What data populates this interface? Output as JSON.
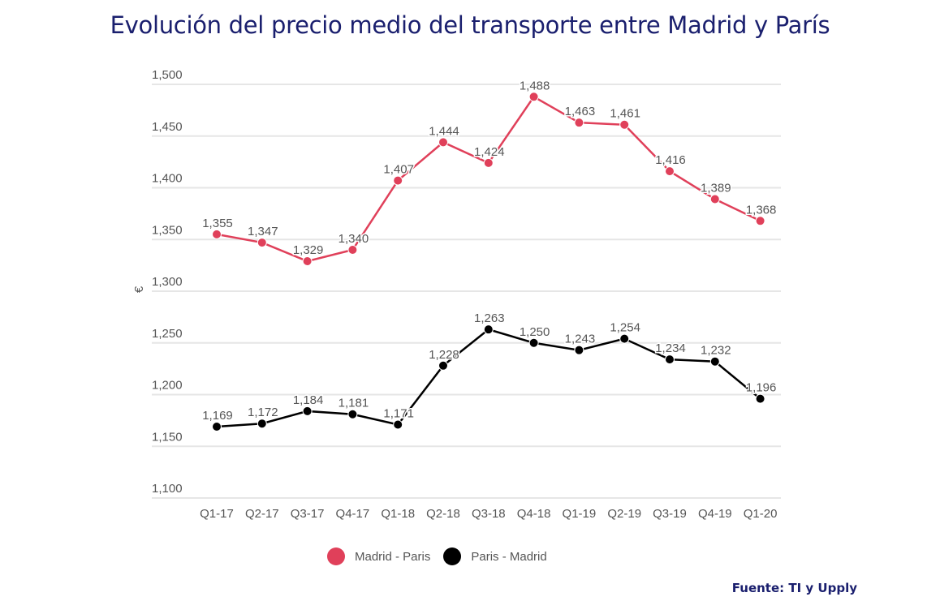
{
  "title": "Evolución del precio medio del transporte entre Madrid y París",
  "source": "Fuente: TI y Upply",
  "chart_data": {
    "type": "line",
    "title": "Evolución del precio medio del transporte entre Madrid y París",
    "xlabel": "",
    "ylabel": "€",
    "ylim": [
      1100,
      1500
    ],
    "yticks": [
      1100,
      1150,
      1200,
      1250,
      1300,
      1350,
      1400,
      1450,
      1500
    ],
    "ytick_labels": [
      "1,100",
      "1,150",
      "1,200",
      "1,250",
      "1,300",
      "1,350",
      "1,400",
      "1,450",
      "1,500"
    ],
    "grid": true,
    "legend_position": "bottom",
    "categories": [
      "Q1-17",
      "Q2-17",
      "Q3-17",
      "Q4-17",
      "Q1-18",
      "Q2-18",
      "Q3-18",
      "Q4-18",
      "Q1-19",
      "Q2-19",
      "Q3-19",
      "Q4-19",
      "Q1-20"
    ],
    "series": [
      {
        "name": "Madrid - Paris",
        "color": "#e0405a",
        "values": [
          1355,
          1347,
          1329,
          1340,
          1407,
          1444,
          1424,
          1488,
          1463,
          1461,
          1416,
          1389,
          1368
        ],
        "labels": [
          "1,355",
          "1,347",
          "1,329",
          "1,340",
          "1,407",
          "1,444",
          "1,424",
          "1,488",
          "1,463",
          "1,461",
          "1,416",
          "1,389",
          "1,368"
        ]
      },
      {
        "name": "Paris - Madrid",
        "color": "#000000",
        "values": [
          1169,
          1172,
          1184,
          1181,
          1171,
          1228,
          1263,
          1250,
          1243,
          1254,
          1234,
          1232,
          1196
        ],
        "labels": [
          "1,169",
          "1,172",
          "1,184",
          "1,181",
          "1,171",
          "1,228",
          "1,263",
          "1,250",
          "1,243",
          "1,254",
          "1,234",
          "1,232",
          "1,196"
        ]
      }
    ]
  }
}
